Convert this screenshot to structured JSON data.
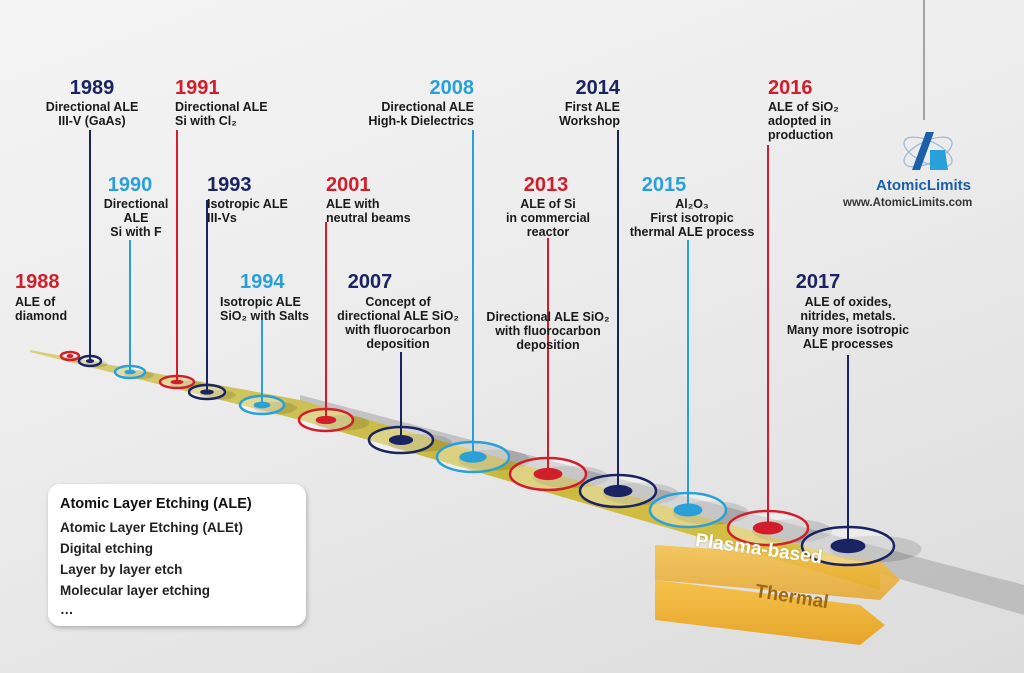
{
  "colors": {
    "navy": "#1b2463",
    "red": "#d21e2b",
    "blue": "#2aa0d8",
    "band": "#c9b63a",
    "thermal": "#f0b63a"
  },
  "events": [
    {
      "year": "1988",
      "desc": "ALE of\ndiamond",
      "color": "red"
    },
    {
      "year": "1989",
      "desc": "Directional ALE\nIII-V (GaAs)",
      "color": "navy"
    },
    {
      "year": "1990",
      "desc": "Directional\nALE\nSi with F",
      "color": "blue"
    },
    {
      "year": "1991",
      "desc": "Directional ALE\nSi with Cl₂",
      "color": "red"
    },
    {
      "year": "1993",
      "desc": "Isotropic ALE\nIII-Vs",
      "color": "navy"
    },
    {
      "year": "1994",
      "desc": "Isotropic ALE\nSiO₂ with Salts",
      "color": "blue"
    },
    {
      "year": "2001",
      "desc": "ALE with\nneutral beams",
      "color": "red"
    },
    {
      "year": "2007",
      "desc": "Concept of\ndirectional ALE SiO₂\nwith fluorocarbon\ndeposition",
      "color": "navy"
    },
    {
      "year": "2008",
      "desc": "Directional ALE\nHigh-k Dielectrics",
      "color": "blue"
    },
    {
      "year": "2013",
      "desc": "ALE of Si\nin commercial\nreactor",
      "color": "red"
    },
    {
      "year": "",
      "desc": "Directional ALE SiO₂\nwith fluorocarbon\ndeposition",
      "color": "red"
    },
    {
      "year": "2014",
      "desc": "First ALE\nWorkshop",
      "color": "navy"
    },
    {
      "year": "2015",
      "desc": "Al₂O₃\nFirst isotropic\nthermal ALE process",
      "color": "blue"
    },
    {
      "year": "2016",
      "desc": "ALE of SiO₂\nadopted in\nproduction",
      "color": "red"
    },
    {
      "year": "2017",
      "desc": "ALE of oxides,\nnitrides, metals.\nMany more isotropic\nALE processes",
      "color": "navy"
    }
  ],
  "terms": {
    "title": "Atomic Layer Etching (ALE)",
    "items": [
      "Atomic Layer Etching (ALEt)",
      "Digital etching",
      "Layer by layer etch",
      "Molecular layer etching",
      "…"
    ]
  },
  "logo": {
    "name": "AtomicLimits",
    "url": "www.AtomicLimits.com"
  },
  "bands": {
    "plasma": "Plasma-based",
    "thermal": "Thermal"
  }
}
